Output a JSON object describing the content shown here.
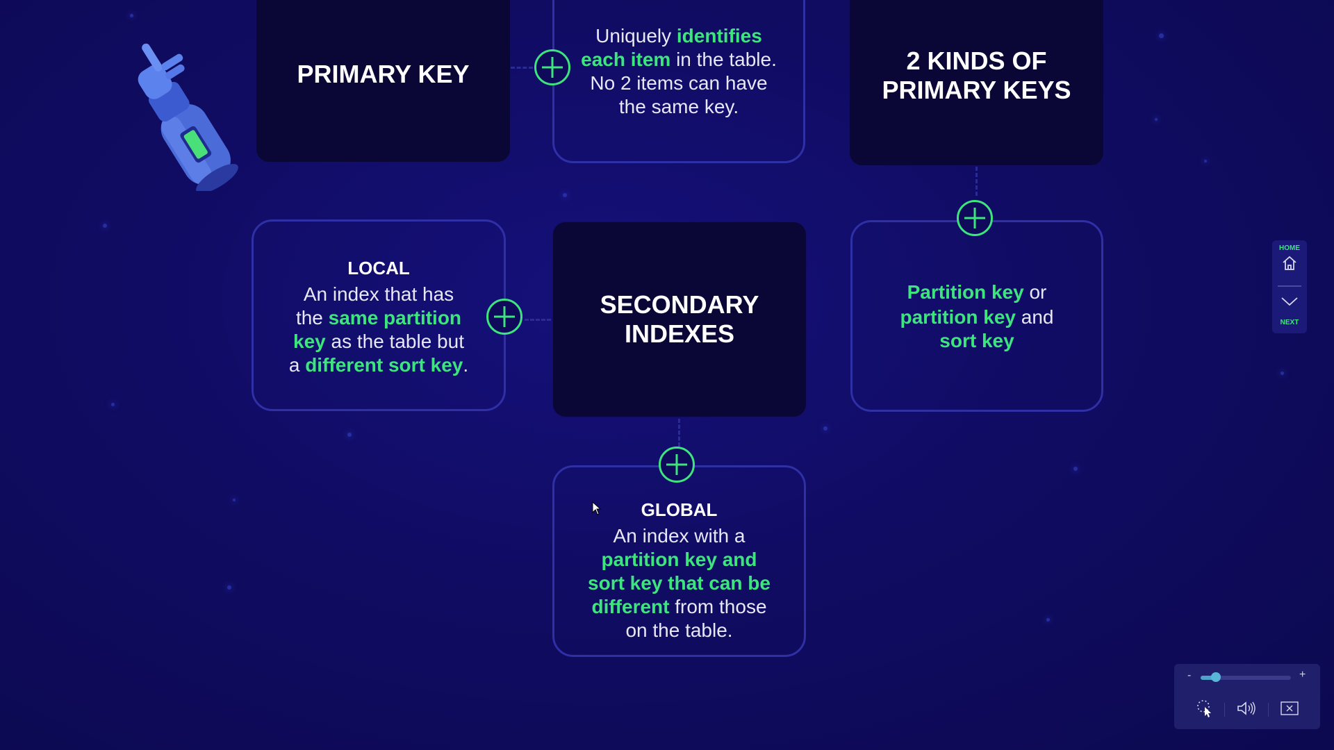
{
  "cards": {
    "primary_key": "PRIMARY KEY",
    "kinds_line1": "2 KINDS OF",
    "kinds_line2": "PRIMARY KEYS",
    "secondary_line1": "SECONDARY",
    "secondary_line2": "INDEXES"
  },
  "uniquely": {
    "p1": "Uniquely ",
    "h1": "identifies",
    "h2": "each item",
    "p2": " in the table.",
    "p3": "No 2 items can have",
    "p4": "the same key."
  },
  "local": {
    "title": "LOCAL",
    "p1": "An index that has",
    "p2": "the ",
    "h1": "same partition",
    "h2": "key",
    "p3": " as the table but",
    "p4": "a ",
    "h3": "different sort key",
    "p5": "."
  },
  "partition": {
    "h1": "Partition key",
    "p1": " or",
    "h2": "partition key",
    "p2": " and",
    "h3": "sort key"
  },
  "global": {
    "title": "GLOBAL",
    "p1": "An index with a",
    "h1": "partition key and",
    "h2": "sort key that can be",
    "h3": "different",
    "p2": " from those",
    "p3": "on the table."
  },
  "nav": {
    "home_label": "HOME",
    "next_label": "NEXT"
  },
  "player": {
    "minus": "-",
    "plus": "+",
    "volume": 0.17
  },
  "colors": {
    "background": "#0f0b5a",
    "accent": "#3ee57f",
    "card_dark": "#0a0636",
    "card_border": "#2f2fa6"
  }
}
